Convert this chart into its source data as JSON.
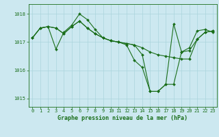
{
  "title": "Graphe pression niveau de la mer (hPa)",
  "background_color": "#cce8f0",
  "grid_color": "#aad4dc",
  "line_color": "#1a6e1a",
  "marker_color": "#1a6e1a",
  "xlim": [
    -0.5,
    23.5
  ],
  "ylim": [
    1014.7,
    1018.35
  ],
  "yticks": [
    1015,
    1016,
    1017,
    1018
  ],
  "xticks": [
    0,
    1,
    2,
    3,
    4,
    5,
    6,
    7,
    8,
    9,
    10,
    11,
    12,
    13,
    14,
    15,
    16,
    17,
    18,
    19,
    20,
    21,
    22,
    23
  ],
  "series": [
    [
      1017.15,
      1017.5,
      1017.55,
      1016.75,
      1017.35,
      1017.6,
      1018.0,
      1017.8,
      1017.45,
      1017.15,
      1017.05,
      1017.0,
      1016.9,
      1016.35,
      1016.1,
      1015.25,
      1015.25,
      1015.5,
      1015.5,
      1016.65,
      1016.7,
      1017.1,
      1017.35,
      1017.4
    ],
    [
      1017.15,
      1017.5,
      1017.55,
      1017.5,
      1017.3,
      1017.55,
      1017.75,
      1017.5,
      1017.3,
      1017.15,
      1017.05,
      1017.0,
      1016.95,
      1016.9,
      1016.8,
      1016.65,
      1016.55,
      1016.5,
      1016.45,
      1016.4,
      1016.4,
      1017.1,
      1017.35,
      1017.4
    ],
    [
      1017.15,
      1017.5,
      1017.55,
      1017.5,
      1017.3,
      1017.55,
      1017.75,
      1017.5,
      1017.3,
      1017.15,
      1017.05,
      1017.0,
      1016.95,
      1016.9,
      1016.55,
      1015.25,
      1015.25,
      1015.5,
      1017.65,
      1016.65,
      1016.8,
      1017.4,
      1017.45,
      1017.35
    ]
  ],
  "title_fontsize": 6,
  "tick_fontsize": 5,
  "figwidth": 3.2,
  "figheight": 2.0,
  "dpi": 100
}
